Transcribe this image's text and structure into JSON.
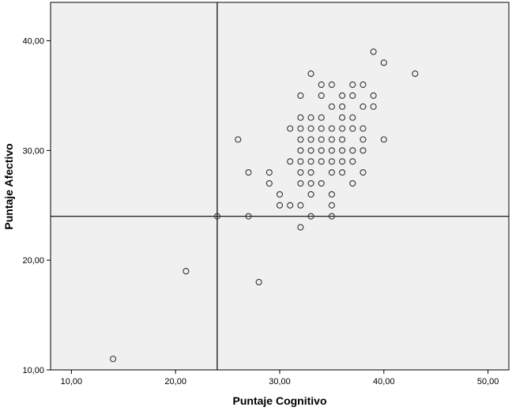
{
  "chart_data": {
    "type": "scatter",
    "title": "",
    "xlabel": "Puntaje Cognitivo",
    "ylabel": "Puntaje Afectivo",
    "xlim": [
      8,
      52
    ],
    "ylim": [
      10,
      43.5
    ],
    "xticks": [
      "10,00",
      "20,00",
      "30,00",
      "40,00",
      "50,00"
    ],
    "yticks": [
      "10,00",
      "20,00",
      "30,00",
      "40,00"
    ],
    "xtick_values": [
      10,
      20,
      30,
      40,
      50
    ],
    "ytick_values": [
      10,
      20,
      30,
      40
    ],
    "reference_lines": {
      "x": 24,
      "y": 24
    },
    "grid": false,
    "colors": {
      "plot_background": "#f0f0f0",
      "marker_edge": "#333333",
      "reference_line": "#000000"
    },
    "points": [
      [
        14,
        11
      ],
      [
        21,
        19
      ],
      [
        24,
        24
      ],
      [
        26,
        31
      ],
      [
        27,
        24
      ],
      [
        27,
        28
      ],
      [
        28,
        18
      ],
      [
        29,
        27
      ],
      [
        29,
        28
      ],
      [
        30,
        25
      ],
      [
        30,
        26
      ],
      [
        31,
        25
      ],
      [
        31,
        29
      ],
      [
        31,
        32
      ],
      [
        32,
        23
      ],
      [
        32,
        25
      ],
      [
        32,
        27
      ],
      [
        32,
        28
      ],
      [
        32,
        29
      ],
      [
        32,
        30
      ],
      [
        32,
        31
      ],
      [
        32,
        32
      ],
      [
        32,
        33
      ],
      [
        32,
        35
      ],
      [
        33,
        24
      ],
      [
        33,
        26
      ],
      [
        33,
        27
      ],
      [
        33,
        28
      ],
      [
        33,
        29
      ],
      [
        33,
        30
      ],
      [
        33,
        31
      ],
      [
        33,
        32
      ],
      [
        33,
        33
      ],
      [
        33,
        37
      ],
      [
        34,
        27
      ],
      [
        34,
        29
      ],
      [
        34,
        30
      ],
      [
        34,
        31
      ],
      [
        34,
        32
      ],
      [
        34,
        33
      ],
      [
        34,
        35
      ],
      [
        34,
        36
      ],
      [
        35,
        24
      ],
      [
        35,
        25
      ],
      [
        35,
        26
      ],
      [
        35,
        28
      ],
      [
        35,
        29
      ],
      [
        35,
        30
      ],
      [
        35,
        31
      ],
      [
        35,
        32
      ],
      [
        35,
        34
      ],
      [
        35,
        36
      ],
      [
        36,
        28
      ],
      [
        36,
        29
      ],
      [
        36,
        30
      ],
      [
        36,
        31
      ],
      [
        36,
        32
      ],
      [
        36,
        33
      ],
      [
        36,
        34
      ],
      [
        36,
        35
      ],
      [
        37,
        27
      ],
      [
        37,
        29
      ],
      [
        37,
        30
      ],
      [
        37,
        32
      ],
      [
        37,
        33
      ],
      [
        37,
        35
      ],
      [
        37,
        36
      ],
      [
        38,
        28
      ],
      [
        38,
        30
      ],
      [
        38,
        31
      ],
      [
        38,
        32
      ],
      [
        38,
        34
      ],
      [
        38,
        36
      ],
      [
        39,
        34
      ],
      [
        39,
        35
      ],
      [
        39,
        39
      ],
      [
        40,
        31
      ],
      [
        40,
        38
      ],
      [
        43,
        37
      ]
    ]
  }
}
